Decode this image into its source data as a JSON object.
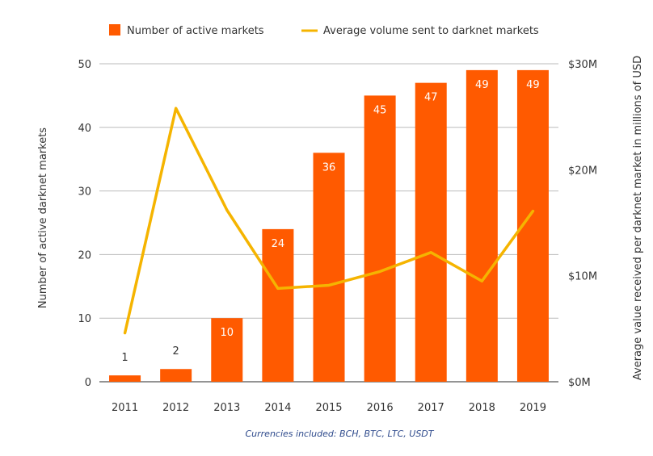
{
  "chart_data": {
    "type": "bar",
    "categories": [
      "2011",
      "2012",
      "2013",
      "2014",
      "2015",
      "2016",
      "2017",
      "2018",
      "2019"
    ],
    "series": [
      {
        "name": "Number of active markets",
        "kind": "bar",
        "axis": "left",
        "color": "#ff5a00",
        "values": [
          1,
          2,
          10,
          24,
          36,
          45,
          47,
          49,
          49
        ]
      },
      {
        "name": "Average volume sent to darknet markets",
        "kind": "line",
        "axis": "right",
        "color": "#f5b400",
        "values": [
          4.6,
          25.8,
          16.2,
          8.8,
          9.1,
          10.4,
          12.2,
          9.5,
          16.1
        ]
      }
    ],
    "bar_labels": [
      "1",
      "2",
      "10",
      "24",
      "36",
      "45",
      "47",
      "49",
      "49"
    ],
    "y_left": {
      "label": "Number of active darknet markets",
      "lim": [
        0,
        50
      ],
      "ticks": [
        "0",
        "10",
        "20",
        "30",
        "40",
        "50"
      ]
    },
    "y_right": {
      "label": "Average value received per darknet market in millions of USD",
      "lim": [
        0,
        30
      ],
      "ticks": [
        "$0M",
        "$10M",
        "$20M",
        "$30M"
      ],
      "tick_values": [
        0,
        10,
        20,
        30
      ]
    },
    "grid": true,
    "legend_position": "top"
  },
  "footnote": "Currencies included: BCH, BTC, LTC, USDT"
}
